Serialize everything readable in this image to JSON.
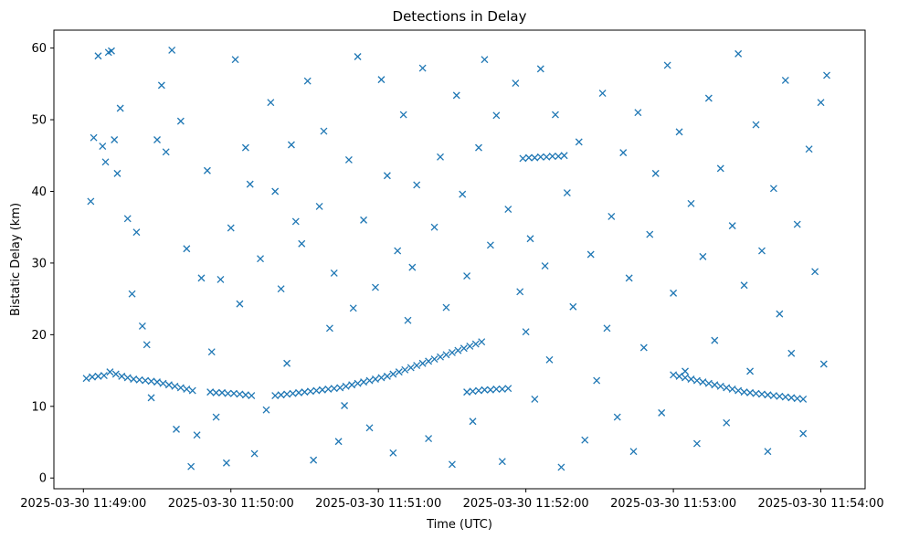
{
  "chart_data": {
    "type": "scatter",
    "title": "Detections in Delay",
    "xlabel": "Time (UTC)",
    "ylabel": "Bistatic Delay (km)",
    "marker": "x",
    "series_color": "#1f77b4",
    "xlim": [
      -0.2,
      5.3
    ],
    "ylim": [
      -1.5,
      62.5
    ],
    "x_unit": "minutes after 2025-03-30 11:49:00",
    "x_ticks": [
      0,
      1,
      2,
      3,
      4,
      5
    ],
    "x_tick_labels": [
      "2025-03-30 11:49:00",
      "2025-03-30 11:50:00",
      "2025-03-30 11:51:00",
      "2025-03-30 11:52:00",
      "2025-03-30 11:53:00",
      "2025-03-30 11:54:00"
    ],
    "y_ticks": [
      0,
      10,
      20,
      30,
      40,
      50,
      60
    ],
    "y_tick_labels": [
      "0",
      "10",
      "20",
      "30",
      "40",
      "50",
      "60"
    ],
    "grid": false,
    "tracks": [
      {
        "name": "track-1",
        "points": [
          [
            0.02,
            13.9
          ],
          [
            0.06,
            14.1
          ],
          [
            0.1,
            14.2
          ],
          [
            0.14,
            14.3
          ],
          [
            0.18,
            14.8
          ],
          [
            0.22,
            14.5
          ],
          [
            0.26,
            14.2
          ],
          [
            0.3,
            14.0
          ],
          [
            0.34,
            13.8
          ],
          [
            0.38,
            13.7
          ],
          [
            0.42,
            13.6
          ],
          [
            0.46,
            13.5
          ],
          [
            0.5,
            13.4
          ],
          [
            0.54,
            13.2
          ],
          [
            0.58,
            13.0
          ],
          [
            0.62,
            12.8
          ],
          [
            0.66,
            12.6
          ],
          [
            0.7,
            12.4
          ],
          [
            0.74,
            12.2
          ]
        ]
      },
      {
        "name": "track-2",
        "points": [
          [
            0.86,
            12.0
          ],
          [
            0.9,
            11.9
          ],
          [
            0.94,
            11.9
          ],
          [
            0.98,
            11.8
          ],
          [
            1.02,
            11.8
          ],
          [
            1.06,
            11.7
          ],
          [
            1.1,
            11.6
          ],
          [
            1.14,
            11.5
          ]
        ]
      },
      {
        "name": "track-3",
        "points": [
          [
            1.3,
            11.5
          ],
          [
            1.34,
            11.6
          ],
          [
            1.38,
            11.7
          ],
          [
            1.42,
            11.8
          ],
          [
            1.46,
            11.9
          ],
          [
            1.5,
            12.0
          ],
          [
            1.54,
            12.1
          ],
          [
            1.58,
            12.2
          ],
          [
            1.62,
            12.3
          ],
          [
            1.66,
            12.4
          ],
          [
            1.7,
            12.5
          ],
          [
            1.74,
            12.6
          ],
          [
            1.78,
            12.8
          ],
          [
            1.82,
            13.0
          ],
          [
            1.86,
            13.2
          ],
          [
            1.9,
            13.4
          ],
          [
            1.94,
            13.6
          ],
          [
            1.98,
            13.8
          ],
          [
            2.02,
            14.0
          ],
          [
            2.06,
            14.2
          ],
          [
            2.1,
            14.5
          ],
          [
            2.14,
            14.8
          ],
          [
            2.18,
            15.1
          ],
          [
            2.22,
            15.4
          ],
          [
            2.26,
            15.7
          ],
          [
            2.3,
            16.0
          ],
          [
            2.34,
            16.3
          ],
          [
            2.38,
            16.6
          ],
          [
            2.42,
            16.9
          ],
          [
            2.46,
            17.2
          ],
          [
            2.5,
            17.5
          ],
          [
            2.54,
            17.8
          ],
          [
            2.58,
            18.1
          ],
          [
            2.62,
            18.4
          ],
          [
            2.66,
            18.7
          ],
          [
            2.7,
            19.0
          ]
        ]
      },
      {
        "name": "track-4",
        "points": [
          [
            2.6,
            12.0
          ],
          [
            2.64,
            12.1
          ],
          [
            2.68,
            12.2
          ],
          [
            2.72,
            12.3
          ],
          [
            2.76,
            12.3
          ],
          [
            2.8,
            12.4
          ],
          [
            2.84,
            12.4
          ],
          [
            2.88,
            12.5
          ]
        ]
      },
      {
        "name": "track-5",
        "points": [
          [
            2.98,
            44.6
          ],
          [
            3.02,
            44.7
          ],
          [
            3.06,
            44.7
          ],
          [
            3.1,
            44.8
          ],
          [
            3.14,
            44.8
          ],
          [
            3.18,
            44.9
          ],
          [
            3.22,
            44.9
          ],
          [
            3.26,
            45.0
          ]
        ]
      },
      {
        "name": "track-6",
        "points": [
          [
            4.0,
            14.4
          ],
          [
            4.04,
            14.2
          ],
          [
            4.08,
            14.0
          ],
          [
            4.12,
            13.8
          ],
          [
            4.16,
            13.6
          ],
          [
            4.2,
            13.4
          ],
          [
            4.24,
            13.2
          ],
          [
            4.28,
            13.0
          ],
          [
            4.32,
            12.8
          ],
          [
            4.36,
            12.6
          ],
          [
            4.4,
            12.4
          ],
          [
            4.44,
            12.2
          ],
          [
            4.48,
            12.0
          ],
          [
            4.52,
            11.9
          ],
          [
            4.56,
            11.8
          ],
          [
            4.6,
            11.7
          ],
          [
            4.64,
            11.6
          ],
          [
            4.68,
            11.5
          ],
          [
            4.72,
            11.4
          ],
          [
            4.76,
            11.3
          ],
          [
            4.8,
            11.2
          ],
          [
            4.84,
            11.1
          ],
          [
            4.88,
            11.0
          ]
        ]
      }
    ],
    "scattered_points": [
      [
        0.05,
        38.6
      ],
      [
        0.07,
        47.5
      ],
      [
        0.1,
        58.9
      ],
      [
        0.13,
        46.3
      ],
      [
        0.15,
        44.1
      ],
      [
        0.17,
        59.4
      ],
      [
        0.19,
        59.6
      ],
      [
        0.21,
        47.2
      ],
      [
        0.23,
        42.5
      ],
      [
        0.25,
        51.6
      ],
      [
        0.3,
        36.2
      ],
      [
        0.33,
        25.7
      ],
      [
        0.36,
        34.3
      ],
      [
        0.4,
        21.2
      ],
      [
        0.43,
        18.6
      ],
      [
        0.46,
        11.2
      ],
      [
        0.5,
        47.2
      ],
      [
        0.53,
        54.8
      ],
      [
        0.56,
        45.5
      ],
      [
        0.6,
        59.7
      ],
      [
        0.63,
        6.8
      ],
      [
        0.66,
        49.8
      ],
      [
        0.7,
        32.0
      ],
      [
        0.73,
        1.6
      ],
      [
        0.77,
        6.0
      ],
      [
        0.8,
        27.9
      ],
      [
        0.84,
        42.9
      ],
      [
        0.87,
        17.6
      ],
      [
        0.9,
        8.5
      ],
      [
        0.93,
        27.7
      ],
      [
        0.97,
        2.1
      ],
      [
        1.0,
        34.9
      ],
      [
        1.03,
        58.4
      ],
      [
        1.06,
        24.3
      ],
      [
        1.1,
        46.1
      ],
      [
        1.13,
        41.0
      ],
      [
        1.16,
        3.4
      ],
      [
        1.2,
        30.6
      ],
      [
        1.24,
        9.5
      ],
      [
        1.27,
        52.4
      ],
      [
        1.3,
        40.0
      ],
      [
        1.34,
        26.4
      ],
      [
        1.38,
        16.0
      ],
      [
        1.41,
        46.5
      ],
      [
        1.44,
        35.8
      ],
      [
        1.48,
        32.7
      ],
      [
        1.52,
        55.4
      ],
      [
        1.56,
        2.5
      ],
      [
        1.6,
        37.9
      ],
      [
        1.63,
        48.4
      ],
      [
        1.67,
        20.9
      ],
      [
        1.7,
        28.6
      ],
      [
        1.73,
        5.1
      ],
      [
        1.77,
        10.1
      ],
      [
        1.8,
        44.4
      ],
      [
        1.83,
        23.7
      ],
      [
        1.86,
        58.8
      ],
      [
        1.9,
        36.0
      ],
      [
        1.94,
        7.0
      ],
      [
        1.98,
        26.6
      ],
      [
        2.02,
        55.6
      ],
      [
        2.06,
        42.2
      ],
      [
        2.1,
        3.5
      ],
      [
        2.13,
        31.7
      ],
      [
        2.17,
        50.7
      ],
      [
        2.2,
        22.0
      ],
      [
        2.23,
        29.4
      ],
      [
        2.26,
        40.9
      ],
      [
        2.3,
        57.2
      ],
      [
        2.34,
        5.5
      ],
      [
        2.38,
        35.0
      ],
      [
        2.42,
        44.8
      ],
      [
        2.46,
        23.8
      ],
      [
        2.5,
        1.9
      ],
      [
        2.53,
        53.4
      ],
      [
        2.57,
        39.6
      ],
      [
        2.6,
        28.2
      ],
      [
        2.64,
        7.9
      ],
      [
        2.68,
        46.1
      ],
      [
        2.72,
        58.4
      ],
      [
        2.76,
        32.5
      ],
      [
        2.8,
        50.6
      ],
      [
        2.84,
        2.3
      ],
      [
        2.88,
        37.5
      ],
      [
        2.93,
        55.1
      ],
      [
        2.96,
        26.0
      ],
      [
        3.0,
        20.4
      ],
      [
        3.03,
        33.4
      ],
      [
        3.06,
        11.0
      ],
      [
        3.1,
        57.1
      ],
      [
        3.13,
        29.6
      ],
      [
        3.16,
        16.5
      ],
      [
        3.2,
        50.7
      ],
      [
        3.24,
        1.5
      ],
      [
        3.28,
        39.8
      ],
      [
        3.32,
        23.9
      ],
      [
        3.36,
        46.9
      ],
      [
        3.4,
        5.3
      ],
      [
        3.44,
        31.2
      ],
      [
        3.48,
        13.6
      ],
      [
        3.52,
        53.7
      ],
      [
        3.55,
        20.9
      ],
      [
        3.58,
        36.5
      ],
      [
        3.62,
        8.5
      ],
      [
        3.66,
        45.4
      ],
      [
        3.7,
        27.9
      ],
      [
        3.73,
        3.7
      ],
      [
        3.76,
        51.0
      ],
      [
        3.8,
        18.2
      ],
      [
        3.84,
        34.0
      ],
      [
        3.88,
        42.5
      ],
      [
        3.92,
        9.1
      ],
      [
        3.96,
        57.6
      ],
      [
        4.0,
        25.8
      ],
      [
        4.04,
        48.3
      ],
      [
        4.08,
        14.9
      ],
      [
        4.12,
        38.3
      ],
      [
        4.16,
        4.8
      ],
      [
        4.2,
        30.9
      ],
      [
        4.24,
        53.0
      ],
      [
        4.28,
        19.2
      ],
      [
        4.32,
        43.2
      ],
      [
        4.36,
        7.7
      ],
      [
        4.4,
        35.2
      ],
      [
        4.44,
        59.2
      ],
      [
        4.48,
        26.9
      ],
      [
        4.52,
        14.9
      ],
      [
        4.56,
        49.3
      ],
      [
        4.6,
        31.7
      ],
      [
        4.64,
        3.7
      ],
      [
        4.68,
        40.4
      ],
      [
        4.72,
        22.9
      ],
      [
        4.76,
        55.5
      ],
      [
        4.8,
        17.4
      ],
      [
        4.84,
        35.4
      ],
      [
        4.88,
        6.2
      ],
      [
        4.92,
        45.9
      ],
      [
        4.96,
        28.8
      ],
      [
        5.0,
        52.4
      ],
      [
        5.02,
        15.9
      ],
      [
        5.04,
        56.2
      ]
    ]
  }
}
